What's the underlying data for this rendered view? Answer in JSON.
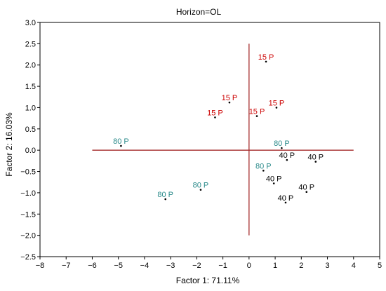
{
  "chart_data": {
    "type": "scatter",
    "title": "Horizon=OL",
    "xlabel": "Factor 1: 71.11%",
    "ylabel": "Factor 2: 16.03%",
    "xlim": [
      -8,
      5
    ],
    "ylim": [
      -2.5,
      3.0
    ],
    "xticks": [
      -8,
      -7,
      -6,
      -5,
      -4,
      -3,
      -2,
      -1,
      0,
      1,
      2,
      3,
      4,
      5
    ],
    "yticks": [
      3.0,
      2.5,
      2.0,
      1.5,
      1.0,
      0.5,
      0.0,
      -0.5,
      -1.0,
      -1.5,
      -2.0,
      -2.5
    ],
    "x_tick_labels": [
      "−8",
      "−7",
      "−6",
      "−5",
      "−4",
      "−3",
      "−2",
      "−1",
      "0",
      "1",
      "2",
      "3",
      "4",
      "5"
    ],
    "y_tick_labels": [
      "3.0",
      "2.5",
      "2.0",
      "1.5",
      "1.0",
      "0.5",
      "0.0",
      "−0.5",
      "−1.0",
      "−1.5",
      "−2.0",
      "−2.5"
    ],
    "grid": false,
    "reference_lines": {
      "horizontal": {
        "y": 0,
        "x_from": -6,
        "x_to": 4
      },
      "vertical": {
        "x": 0,
        "y_from": -2,
        "y_to": 2.5
      },
      "color": "#a52a2a"
    },
    "points": [
      {
        "label": "15 P",
        "x": 0.65,
        "y": 2.08,
        "color": "#cc0000"
      },
      {
        "label": "15 P",
        "x": -0.75,
        "y": 1.12,
        "color": "#cc0000"
      },
      {
        "label": "15 P",
        "x": 1.05,
        "y": 1.0,
        "color": "#cc0000"
      },
      {
        "label": "15 P",
        "x": -1.3,
        "y": 0.77,
        "color": "#cc0000"
      },
      {
        "label": "15 P",
        "x": 0.3,
        "y": 0.8,
        "color": "#cc0000"
      },
      {
        "label": "80 P",
        "x": -4.9,
        "y": 0.1,
        "color": "#2a8a8a"
      },
      {
        "label": "80 P",
        "x": 1.25,
        "y": 0.05,
        "color": "#2a8a8a"
      },
      {
        "label": "80 P",
        "x": 0.55,
        "y": -0.48,
        "color": "#2a8a8a"
      },
      {
        "label": "80 P",
        "x": -1.85,
        "y": -0.93,
        "color": "#2a8a8a"
      },
      {
        "label": "80 P",
        "x": -3.2,
        "y": -1.15,
        "color": "#2a8a8a"
      },
      {
        "label": "40 P",
        "x": 1.45,
        "y": -0.23,
        "color": "#000000"
      },
      {
        "label": "40 P",
        "x": 2.55,
        "y": -0.27,
        "color": "#000000"
      },
      {
        "label": "40 P",
        "x": 0.95,
        "y": -0.78,
        "color": "#000000"
      },
      {
        "label": "40 P",
        "x": 2.2,
        "y": -0.98,
        "color": "#000000"
      },
      {
        "label": "40 P",
        "x": 1.4,
        "y": -1.23,
        "color": "#000000"
      }
    ]
  }
}
